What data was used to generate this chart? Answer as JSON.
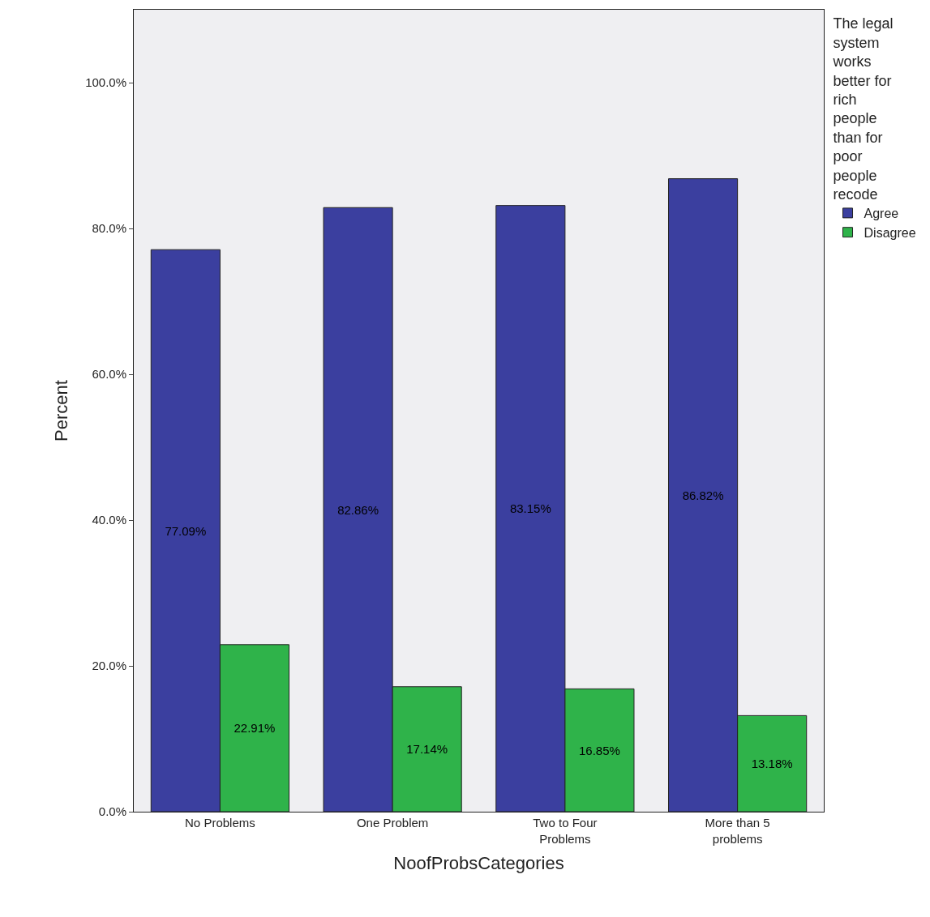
{
  "chart_data": {
    "type": "bar",
    "xlabel": "NoofProbsCategories",
    "ylabel": "Percent",
    "legend_title": "The legal system works better for rich people than for poor people recode",
    "categories": [
      "No Problems",
      "One Problem",
      "Two to Four Problems",
      "More than 5 problems"
    ],
    "series": [
      {
        "name": "Agree",
        "color": "#3b3f9f",
        "values": [
          77.09,
          82.86,
          83.15,
          86.82
        ],
        "value_labels": [
          "77.09%",
          "82.86%",
          "83.15%",
          "86.82%"
        ]
      },
      {
        "name": "Disagree",
        "color": "#2fb34a",
        "values": [
          22.91,
          17.14,
          16.85,
          13.18
        ],
        "value_labels": [
          "22.91%",
          "17.14%",
          "16.85%",
          "13.18%"
        ]
      }
    ],
    "ylim": [
      0,
      110
    ],
    "yticks": [
      {
        "value": 0,
        "label": "0.0%"
      },
      {
        "value": 20,
        "label": "20.0%"
      },
      {
        "value": 40,
        "label": "40.0%"
      },
      {
        "value": 60,
        "label": "60.0%"
      },
      {
        "value": 80,
        "label": "80.0%"
      },
      {
        "value": 100,
        "label": "100.0%"
      }
    ],
    "grid": false,
    "legend": "right"
  }
}
